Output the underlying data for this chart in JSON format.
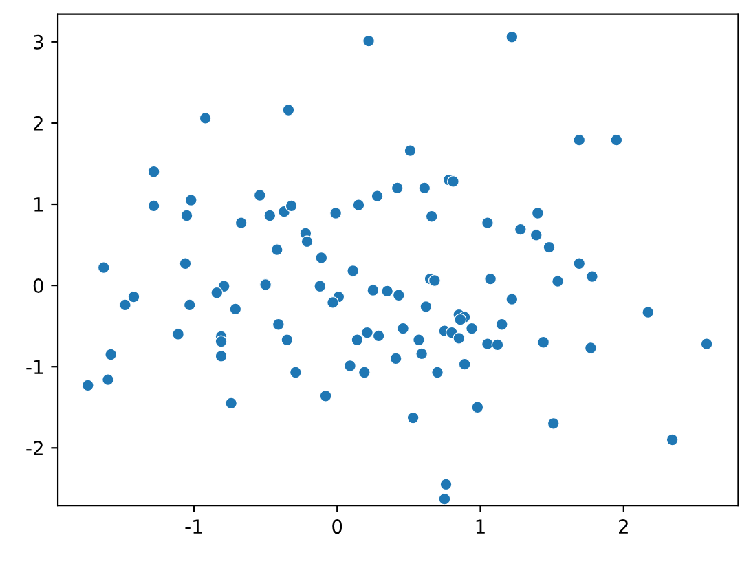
{
  "chart_data": {
    "type": "scatter",
    "x": [
      0.22,
      -0.34,
      -0.92,
      -1.28,
      -1.28,
      -1.02,
      -1.05,
      -0.54,
      -0.67,
      -0.47,
      -0.37,
      -0.32,
      -0.22,
      -0.21,
      -0.42,
      -0.11,
      -0.01,
      0.15,
      0.28,
      0.42,
      -1.06,
      1.22,
      1.69,
      1.95,
      0.51,
      0.61,
      0.78,
      0.81,
      0.66,
      1.05,
      1.4,
      1.28,
      1.39,
      1.48,
      -1.63,
      0.11,
      -1.42,
      -1.48,
      -0.79,
      -0.84,
      -0.5,
      -1.03,
      -0.71,
      -0.12,
      0.01,
      -0.03,
      0.25,
      0.35,
      0.43,
      -1.11,
      -0.81,
      -0.81,
      -0.81,
      -1.58,
      -1.6,
      -1.74,
      -0.41,
      -0.35,
      -0.29,
      -0.74,
      -0.08,
      0.14,
      0.21,
      0.29,
      0.09,
      0.19,
      0.41,
      1.69,
      1.78,
      1.54,
      0.65,
      0.68,
      1.07,
      0.62,
      1.22,
      0.85,
      0.89,
      0.86,
      0.46,
      0.75,
      0.8,
      0.94,
      0.85,
      1.15,
      0.57,
      0.59,
      1.05,
      1.12,
      1.44,
      1.77,
      2.17,
      2.58,
      0.89,
      0.7,
      0.98,
      0.53,
      1.51,
      2.34,
      0.76,
      0.75
    ],
    "values": [
      3.01,
      2.16,
      2.06,
      1.4,
      0.98,
      1.05,
      0.86,
      1.11,
      0.77,
      0.86,
      0.91,
      0.98,
      0.64,
      0.54,
      0.44,
      0.34,
      0.89,
      0.99,
      1.1,
      1.2,
      0.27,
      3.06,
      1.79,
      1.79,
      1.66,
      1.2,
      1.3,
      1.28,
      0.85,
      0.77,
      0.89,
      0.69,
      0.62,
      0.47,
      0.22,
      0.18,
      -0.14,
      -0.24,
      -0.01,
      -0.09,
      0.01,
      -0.24,
      -0.29,
      -0.01,
      -0.14,
      -0.21,
      -0.06,
      -0.07,
      -0.12,
      -0.6,
      -0.63,
      -0.69,
      -0.87,
      -0.85,
      -1.16,
      -1.23,
      -0.48,
      -0.67,
      -1.07,
      -1.45,
      -1.36,
      -0.67,
      -0.58,
      -0.62,
      -0.99,
      -1.07,
      -0.9,
      0.27,
      0.11,
      0.05,
      0.08,
      0.06,
      0.08,
      -0.26,
      -0.17,
      -0.36,
      -0.39,
      -0.42,
      -0.53,
      -0.56,
      -0.58,
      -0.53,
      -0.65,
      -0.48,
      -0.67,
      -0.84,
      -0.72,
      -0.73,
      -0.7,
      -0.77,
      -0.33,
      -0.72,
      -0.97,
      -1.07,
      -1.5,
      -1.63,
      -1.7,
      -1.9,
      -2.45,
      -2.63
    ],
    "color": "#1f77b4",
    "xlim": [
      -1.95,
      2.8
    ],
    "ylim": [
      -2.71,
      3.34
    ],
    "xticks": [
      -1,
      0,
      1,
      2
    ],
    "yticks": [
      -2,
      -1,
      0,
      1,
      2,
      3
    ],
    "grid": false,
    "marker": "circle"
  }
}
